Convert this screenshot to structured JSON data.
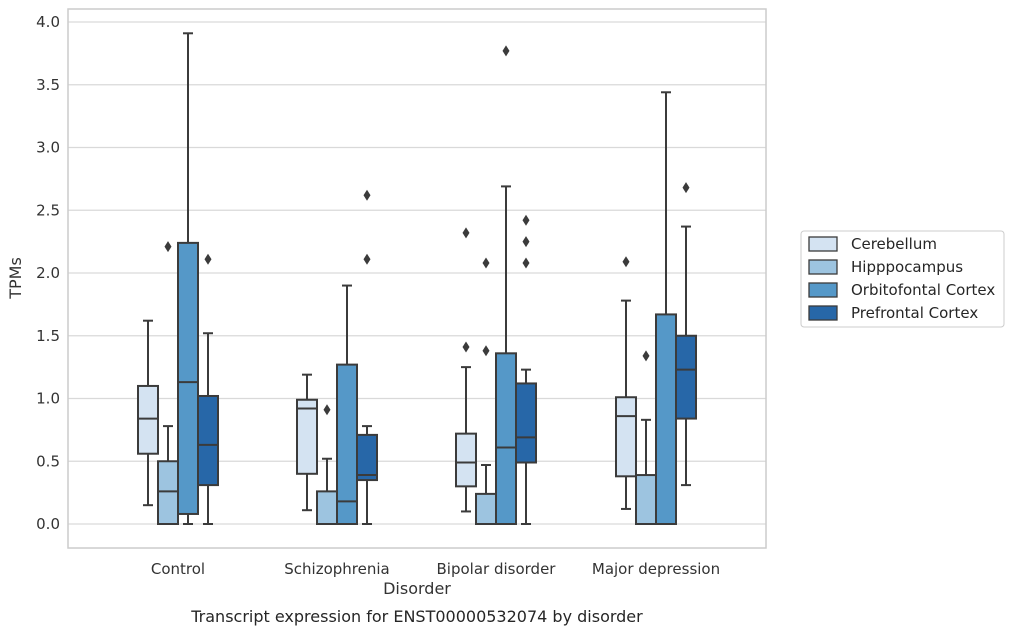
{
  "caption": "Transcript expression for ENST00000532074 by disorder",
  "chart_data": {
    "type": "boxplot",
    "title": "",
    "xlabel": "Disorder",
    "ylabel": "TPMs",
    "ylim": [
      -0.18,
      4.1
    ],
    "yticks": [
      0.0,
      0.5,
      1.0,
      1.5,
      2.0,
      2.5,
      3.0,
      3.5,
      4.0
    ],
    "ytick_labels": [
      "0.0",
      "0.5",
      "1.0",
      "1.5",
      "2.0",
      "2.5",
      "3.0",
      "3.5",
      "4.0"
    ],
    "grid": true,
    "legend_position": "right",
    "categories": [
      "Control",
      "Schizophrenia",
      "Bipolar disorder",
      "Major depression"
    ],
    "series": [
      {
        "name": "Cerebellum",
        "color": "#d4e3f2",
        "boxes": [
          {
            "whislo": 0.15,
            "q1": 0.56,
            "med": 0.84,
            "q3": 1.1,
            "whishi": 1.62,
            "fliers": []
          },
          {
            "whislo": 0.11,
            "q1": 0.4,
            "med": 0.92,
            "q3": 0.99,
            "whishi": 1.19,
            "fliers": []
          },
          {
            "whislo": 0.1,
            "q1": 0.3,
            "med": 0.49,
            "q3": 0.72,
            "whishi": 1.25,
            "fliers": [
              1.41,
              2.32
            ]
          },
          {
            "whislo": 0.12,
            "q1": 0.38,
            "med": 0.86,
            "q3": 1.01,
            "whishi": 1.78,
            "fliers": [
              2.09
            ]
          }
        ]
      },
      {
        "name": "Hipppocampus",
        "color": "#9dc4e0",
        "boxes": [
          {
            "whislo": 0.0,
            "q1": 0.0,
            "med": 0.26,
            "q3": 0.5,
            "whishi": 0.78,
            "fliers": [
              2.21
            ]
          },
          {
            "whislo": 0.0,
            "q1": 0.0,
            "med": 0.0,
            "q3": 0.26,
            "whishi": 0.52,
            "fliers": [
              0.91
            ]
          },
          {
            "whislo": 0.0,
            "q1": 0.0,
            "med": 0.0,
            "q3": 0.24,
            "whishi": 0.47,
            "fliers": [
              1.38,
              2.08
            ]
          },
          {
            "whislo": 0.0,
            "q1": 0.0,
            "med": 0.0,
            "q3": 0.39,
            "whishi": 0.83,
            "fliers": [
              1.34
            ]
          }
        ]
      },
      {
        "name": "Orbitofontal Cortex",
        "color": "#5598c8",
        "boxes": [
          {
            "whislo": 0.0,
            "q1": 0.08,
            "med": 1.13,
            "q3": 2.24,
            "whishi": 3.91,
            "fliers": []
          },
          {
            "whislo": 0.0,
            "q1": 0.0,
            "med": 0.18,
            "q3": 1.27,
            "whishi": 1.9,
            "fliers": []
          },
          {
            "whislo": 0.0,
            "q1": 0.0,
            "med": 0.61,
            "q3": 1.36,
            "whishi": 2.69,
            "fliers": [
              3.77
            ]
          },
          {
            "whislo": 0.0,
            "q1": 0.0,
            "med": 0.0,
            "q3": 1.67,
            "whishi": 3.44,
            "fliers": []
          }
        ]
      },
      {
        "name": "Prefrontal Cortex",
        "color": "#2767a8",
        "boxes": [
          {
            "whislo": 0.0,
            "q1": 0.31,
            "med": 0.63,
            "q3": 1.02,
            "whishi": 1.52,
            "fliers": [
              2.11
            ]
          },
          {
            "whislo": 0.0,
            "q1": 0.35,
            "med": 0.39,
            "q3": 0.71,
            "whishi": 0.78,
            "fliers": [
              2.11,
              2.62
            ]
          },
          {
            "whislo": 0.0,
            "q1": 0.49,
            "med": 0.69,
            "q3": 1.12,
            "whishi": 1.23,
            "fliers": [
              2.08,
              2.25,
              2.42
            ]
          },
          {
            "whislo": 0.31,
            "q1": 0.84,
            "med": 1.23,
            "q3": 1.5,
            "whishi": 2.37,
            "fliers": [
              2.68
            ]
          }
        ]
      }
    ]
  }
}
